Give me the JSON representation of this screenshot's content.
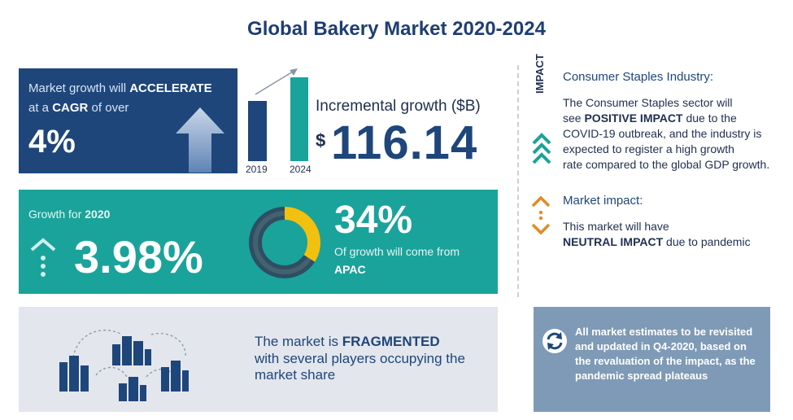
{
  "title": "Global Bakery Market 2020-2024",
  "cagr_box": {
    "line1_pre": "Market growth will",
    "line1_strong": "ACCELERATE",
    "line2_pre": "at a",
    "line2_strong": "CAGR",
    "line2_post": "of over",
    "value": "4%"
  },
  "incremental": {
    "label": "Incremental growth ($B)",
    "currency": "$",
    "value": "116.14",
    "year_start": "2019",
    "year_end": "2024"
  },
  "growth_box": {
    "label_pre": "Growth for",
    "year": "2020",
    "value": "3.98%",
    "share": "34%",
    "share_text": "Of growth will come from",
    "region": "APAC",
    "share_fraction": 0.34
  },
  "fragmented_box": {
    "line1_pre": "The market is",
    "line1_strong": "FRAGMENTED",
    "line2": "with several players occupying the",
    "line3": "market share"
  },
  "impact": {
    "vertical_label": "IMPACT",
    "consumer_title": "Consumer Staples Industry:",
    "consumer_l1": "The Consumer Staples sector will",
    "consumer_l2_pre": "see",
    "consumer_l2_strong": "POSITIVE IMPACT",
    "consumer_l2_post": "due to the",
    "consumer_l3": "COVID-19 outbreak, and the industry is",
    "consumer_l4": "expected to register a high growth",
    "consumer_l5": "rate compared to the global GDP growth.",
    "market_title": "Market impact:",
    "market_l1": "This market will have",
    "market_l2_strong": "NEUTRAL IMPACT",
    "market_l2_post": "due to pandemic"
  },
  "note": {
    "text": "All market estimates to be revisited and updated in Q4-2020, based on the revaluation of the impact, as the pandemic spread plateaus"
  },
  "colors": {
    "navy": "#1e467b",
    "teal": "#1aa39a",
    "orange": "#e58a22",
    "yellow": "#f2c10f",
    "gray_box": "#e3e6ec",
    "slate": "#7e9ab6"
  }
}
